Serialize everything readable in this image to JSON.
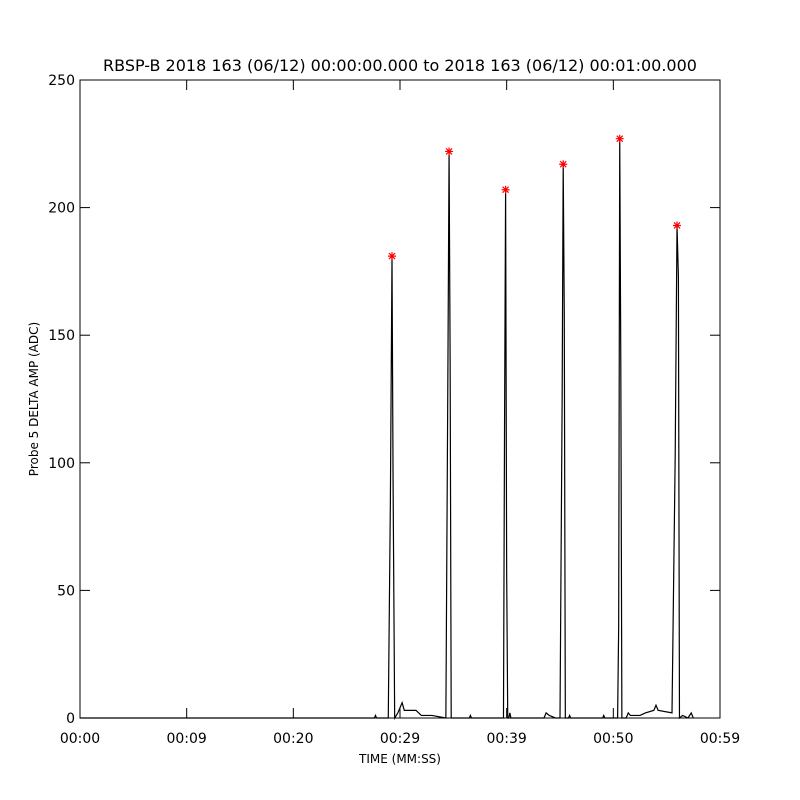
{
  "chart_data": {
    "type": "line",
    "title": "RBSP-B 2018 163 (06/12) 00:00:00.000 to 2018 163 (06/12) 00:01:00.000",
    "x_label": "TIME (MM:SS)",
    "y_label": "Probe 5 DELTA AMP (ADC)",
    "xlim": [
      0,
      60
    ],
    "xticks": [
      {
        "value": 0,
        "label": "00:00"
      },
      {
        "value": 10,
        "label": "00:09"
      },
      {
        "value": 20,
        "label": "00:20"
      },
      {
        "value": 30,
        "label": "00:29"
      },
      {
        "value": 40,
        "label": "00:39"
      },
      {
        "value": 50,
        "label": "00:50"
      },
      {
        "value": 60,
        "label": "00:59"
      }
    ],
    "ylim": [
      0,
      250
    ],
    "yticks": [
      0,
      50,
      100,
      150,
      200,
      250
    ],
    "series": [
      {
        "color": "#000000",
        "x": [
          0,
          27.6,
          27.7,
          27.8,
          28.9,
          29.1,
          29.25,
          29.35,
          29.5,
          29.8,
          30,
          30.2,
          30.4,
          31.5,
          32,
          33,
          34.3,
          34.5,
          34.6,
          34.7,
          34.8,
          36.5,
          36.6,
          36.7,
          39.7,
          39.8,
          39.9,
          40,
          40.1,
          40.2,
          40.3,
          40.4,
          43.5,
          43.7,
          44,
          44.6,
          45,
          45.2,
          45.3,
          45.4,
          45.5,
          45.8,
          45.9,
          46,
          49,
          49.1,
          49.2,
          50.4,
          50.5,
          50.6,
          50.7,
          50.8,
          51.2,
          51.4,
          51.6,
          52.5,
          53,
          53.8,
          54,
          54.2,
          55.5,
          55.8,
          55.97,
          56.1,
          56.2,
          56.5,
          57,
          57.3,
          57.5
        ],
        "values": [
          0,
          0,
          1,
          0,
          0,
          86,
          181,
          93,
          0,
          2,
          4,
          6,
          3,
          3,
          1,
          1,
          0,
          143,
          222,
          140,
          0,
          0,
          1,
          0,
          0,
          113,
          207,
          57,
          0,
          0,
          2,
          0,
          0,
          2,
          1,
          0,
          0,
          124,
          217,
          158,
          0,
          0,
          1,
          0,
          0,
          1,
          0,
          0,
          36,
          227,
          139,
          0,
          0,
          2,
          1,
          1,
          2,
          3,
          5,
          3,
          2,
          103,
          193,
          173,
          0,
          1,
          0,
          2,
          0
        ]
      },
      {
        "color": "#ff0000",
        "marker": "asterisk",
        "x": [
          29.25,
          34.6,
          39.9,
          45.3,
          50.6,
          55.97
        ],
        "values": [
          181,
          222,
          207,
          217,
          227,
          193
        ]
      }
    ]
  }
}
